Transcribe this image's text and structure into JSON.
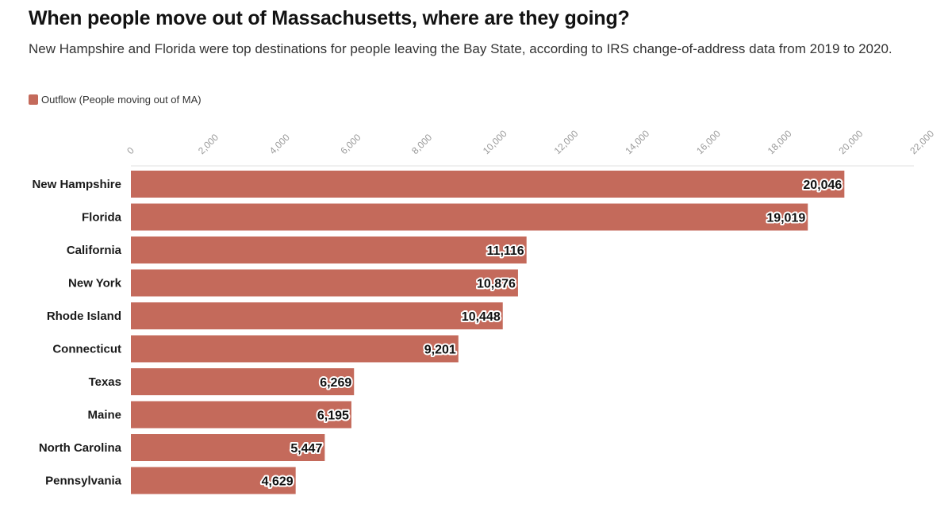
{
  "chart_data": {
    "type": "bar",
    "orientation": "horizontal",
    "title": "When people move out of Massachusetts, where are they going?",
    "subtitle": "New Hampshire and Florida were top destinations for people leaving the Bay State, according to IRS change-of-address data from 2019 to 2020.",
    "categories": [
      "New Hampshire",
      "Florida",
      "California",
      "New York",
      "Rhode Island",
      "Connecticut",
      "Texas",
      "Maine",
      "North Carolina",
      "Pennsylvania"
    ],
    "series": [
      {
        "name": "Outflow (People moving out of MA)",
        "values": [
          20046,
          19019,
          11116,
          10876,
          10448,
          9201,
          6269,
          6195,
          5447,
          4629
        ],
        "value_labels": [
          "20,046",
          "19,019",
          "11,116",
          "10,876",
          "10,448",
          "9,201",
          "6,269",
          "6,195",
          "5,447",
          "4,629"
        ],
        "color": "#c46a5b"
      }
    ],
    "xlim": [
      0,
      22000
    ],
    "x_ticks": [
      0,
      2000,
      4000,
      6000,
      8000,
      10000,
      12000,
      14000,
      16000,
      18000,
      20000,
      22000
    ],
    "x_tick_labels": [
      "0",
      "2,000",
      "4,000",
      "6,000",
      "8,000",
      "10,000",
      "12,000",
      "14,000",
      "16,000",
      "18,000",
      "20,000",
      "22,000"
    ],
    "x_axis_position": "top",
    "grid": false,
    "legend_placement": "top-left"
  }
}
